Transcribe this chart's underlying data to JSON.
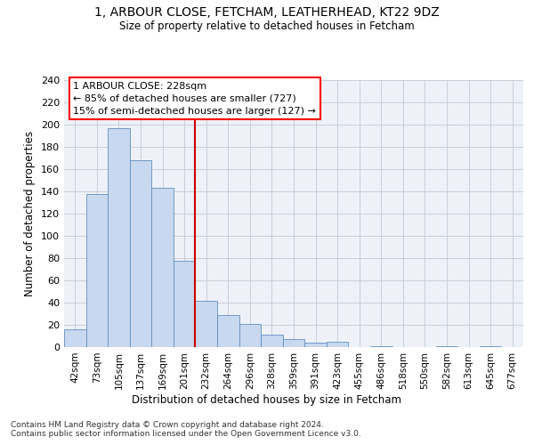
{
  "title_line1": "1, ARBOUR CLOSE, FETCHAM, LEATHERHEAD, KT22 9DZ",
  "title_line2": "Size of property relative to detached houses in Fetcham",
  "xlabel": "Distribution of detached houses by size in Fetcham",
  "ylabel": "Number of detached properties",
  "bar_color": "#c8d8ee",
  "bar_edge_color": "#6090c0",
  "vline_color": "#cc0000",
  "vline_x_index": 6,
  "annotation_text": "1 ARBOUR CLOSE: 228sqm\n← 85% of detached houses are smaller (727)\n15% of semi-detached houses are larger (127) →",
  "categories": [
    "42sqm",
    "73sqm",
    "105sqm",
    "137sqm",
    "169sqm",
    "201sqm",
    "232sqm",
    "264sqm",
    "296sqm",
    "328sqm",
    "359sqm",
    "391sqm",
    "423sqm",
    "455sqm",
    "486sqm",
    "518sqm",
    "550sqm",
    "582sqm",
    "613sqm",
    "645sqm",
    "677sqm"
  ],
  "values": [
    16,
    138,
    197,
    168,
    143,
    78,
    42,
    29,
    21,
    11,
    7,
    4,
    5,
    0,
    1,
    0,
    0,
    1,
    0,
    1,
    0
  ],
  "ylim": [
    0,
    240
  ],
  "yticks": [
    0,
    20,
    40,
    60,
    80,
    100,
    120,
    140,
    160,
    180,
    200,
    220,
    240
  ],
  "footer_line1": "Contains HM Land Registry data © Crown copyright and database right 2024.",
  "footer_line2": "Contains public sector information licensed under the Open Government Licence v3.0.",
  "background_color": "#ffffff",
  "plot_bg_color": "#eef2f8",
  "grid_color": "#c8cdd8"
}
